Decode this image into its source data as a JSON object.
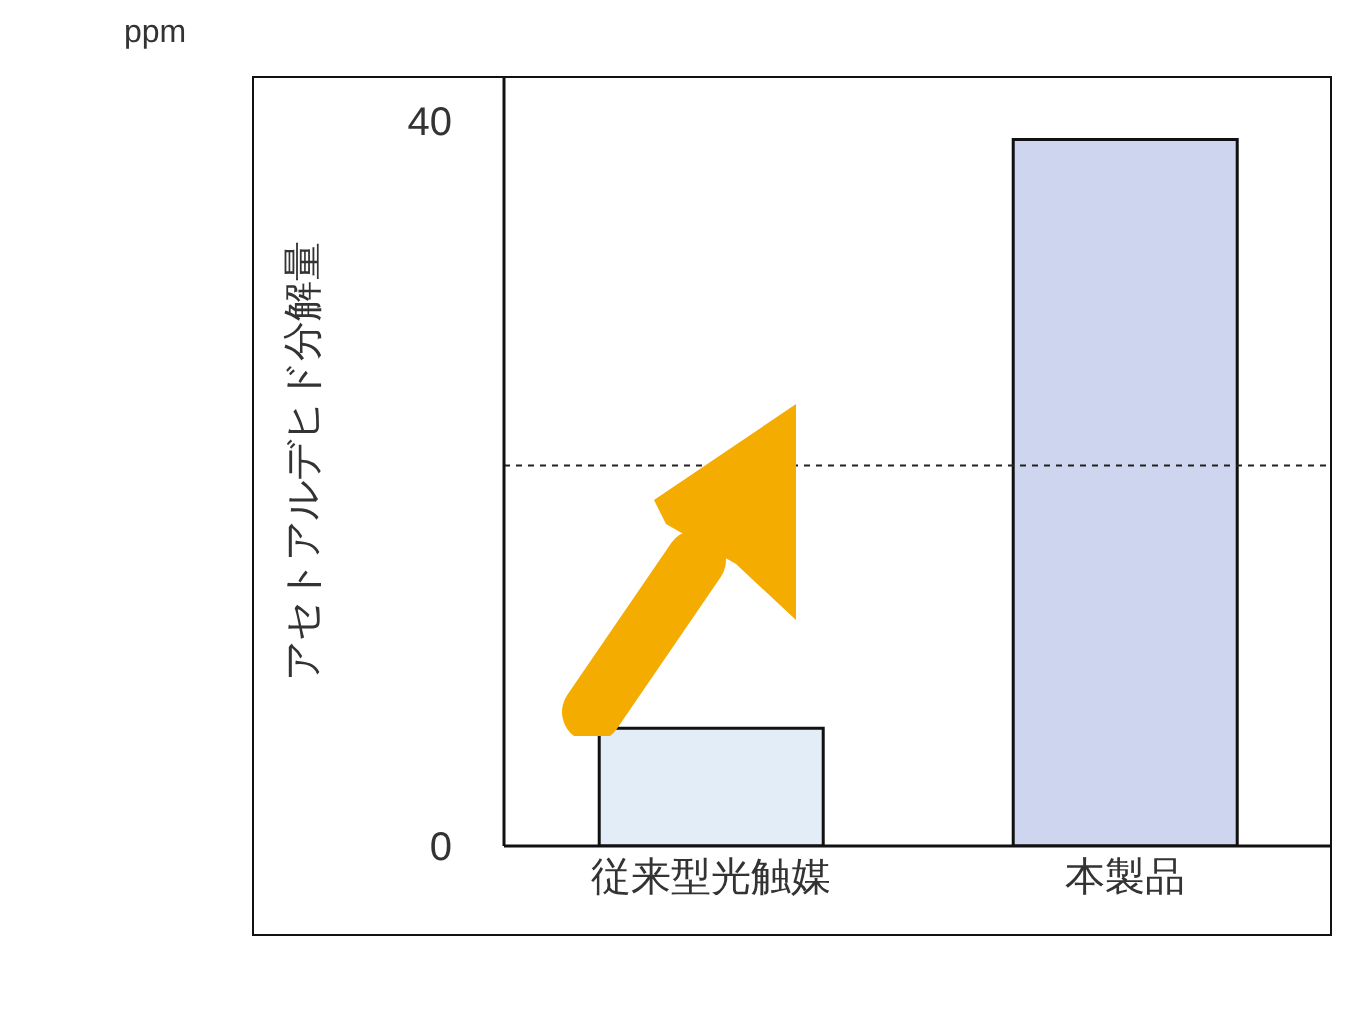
{
  "chart_data": {
    "type": "bar",
    "ylabel": "アセトアルデヒド分解量",
    "annotations": [
      "ppm"
    ],
    "categories": [
      "従来型光触媒",
      "本製品"
    ],
    "values": [
      6.5,
      39
    ],
    "colors": [
      "#e3edf7",
      "#cdd6ee"
    ],
    "ylim": [
      0,
      42.5
    ],
    "yticks": [
      0,
      40
    ],
    "ref_lines": [
      {
        "axis": "y",
        "value": 21,
        "color": "#222222",
        "line_style": "dotted"
      }
    ],
    "grid": false,
    "legend": false
  }
}
